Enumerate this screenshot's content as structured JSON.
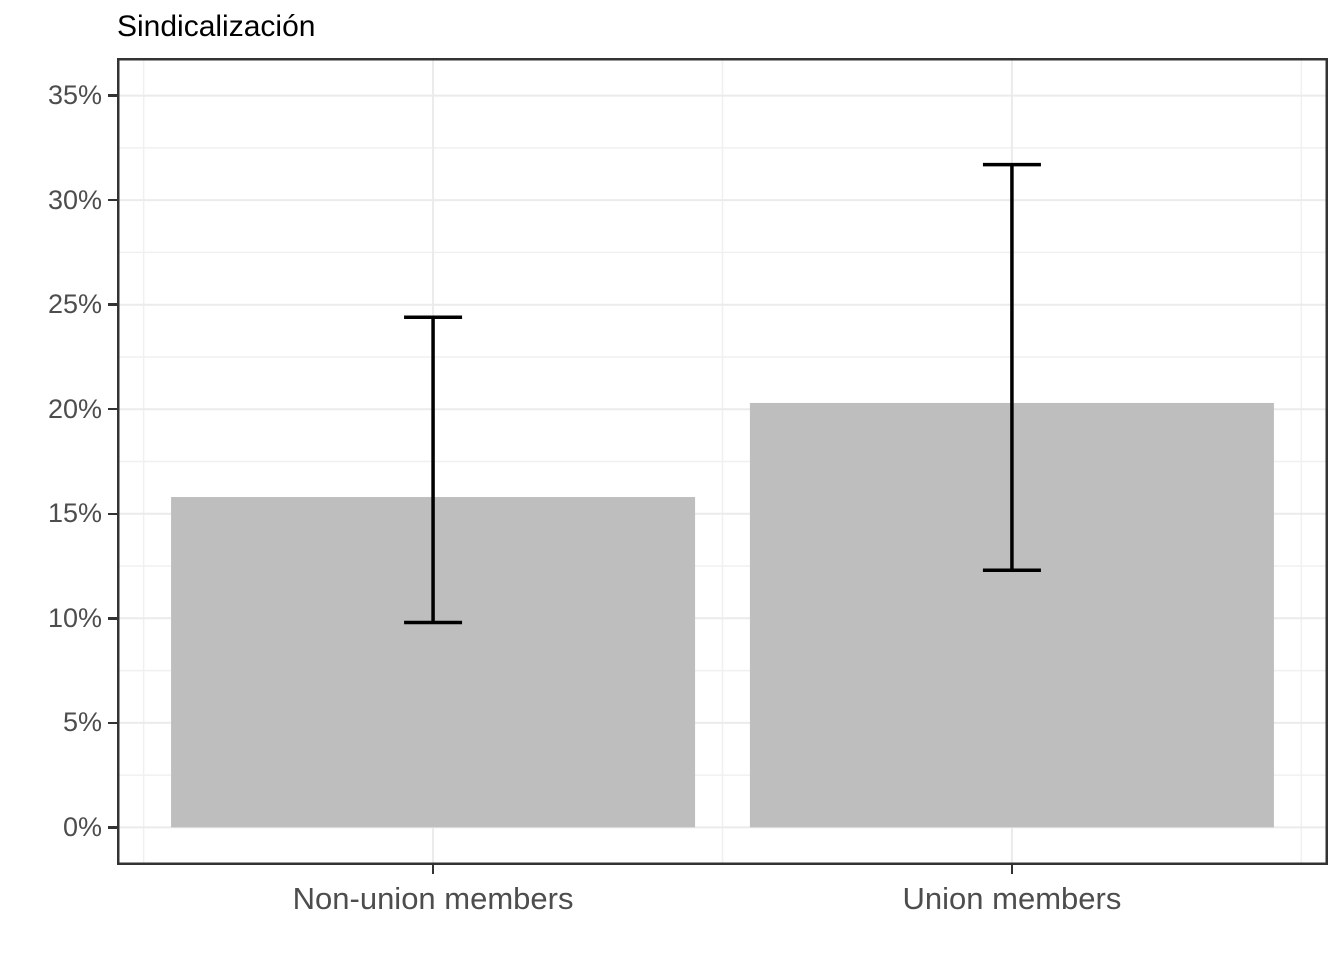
{
  "chart_data": {
    "type": "bar",
    "title": "Sindicalización",
    "categories": [
      "Non-union members",
      "Union members"
    ],
    "values": [
      15.8,
      20.3
    ],
    "error_bars": {
      "low": [
        9.8,
        12.3
      ],
      "high": [
        24.4,
        31.7
      ]
    },
    "y_tick_values": [
      0,
      5,
      10,
      15,
      20,
      25,
      30,
      35
    ],
    "y_tick_labels": [
      "0%",
      "5%",
      "10%",
      "15%",
      "20%",
      "25%",
      "30%",
      "35%"
    ],
    "xlabel": "",
    "ylabel": "",
    "ylim": [
      0,
      35
    ],
    "axis_range_expanded": [
      -1.8,
      36.8
    ],
    "grid": "major and minor gridlines, horizontal and vertical, light gray on white",
    "legend_position": "none",
    "colors": {
      "bar_fill": "#BEBEBE",
      "error_bar": "#000000",
      "grid_major": "#EBEBEB",
      "grid_minor": "#F0F0F0",
      "panel_border": "#333333",
      "tick_mark": "#333333",
      "axis_text": "#4D4D4D",
      "title_text": "#000000",
      "background": "#FFFFFF"
    }
  }
}
